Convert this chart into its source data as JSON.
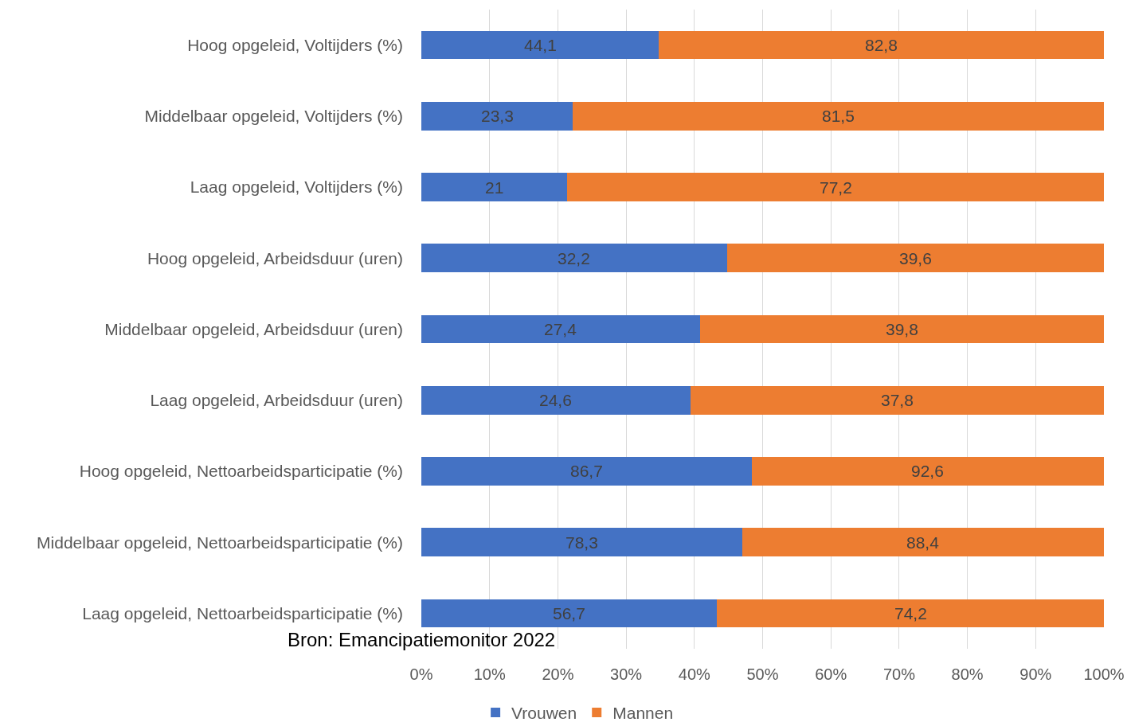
{
  "chart_data": {
    "type": "bar",
    "orientation": "horizontal",
    "stacked": true,
    "categories": [
      "Hoog opgeleid, Voltijders (%)",
      "Middelbaar opgeleid, Voltijders (%)",
      "Laag opgeleid, Voltijders (%)",
      "Hoog opgeleid, Arbeidsduur (uren)",
      "Middelbaar opgeleid, Arbeidsduur (uren)",
      "Laag opgeleid, Arbeidsduur (uren)",
      "Hoog opgeleid, Nettoarbeidsparticipatie (%)",
      "Middelbaar opgeleid, Nettoarbeidsparticipatie (%)",
      "Laag opgeleid, Nettoarbeidsparticipatie (%)"
    ],
    "series": [
      {
        "name": "Vrouwen",
        "color": "#4472c4",
        "values": [
          34.8,
          22.2,
          21.4,
          44.8,
          40.8,
          39.4,
          48.4,
          47.0,
          43.3
        ]
      },
      {
        "name": "Mannen",
        "color": "#ed7d31",
        "values": [
          65.2,
          77.8,
          78.6,
          55.2,
          59.2,
          60.6,
          51.6,
          53.0,
          56.7
        ]
      }
    ],
    "xlim": [
      0,
      100
    ],
    "xticks": [
      {
        "value": 0,
        "label": "0%"
      },
      {
        "value": 10,
        "label": "10%"
      },
      {
        "value": 20,
        "label": "20%"
      },
      {
        "value": 30,
        "label": "30%"
      },
      {
        "value": 40,
        "label": "40%"
      },
      {
        "value": 50,
        "label": "50%"
      },
      {
        "value": 60,
        "label": "60%"
      },
      {
        "value": 70,
        "label": "70%"
      },
      {
        "value": 80,
        "label": "80%"
      },
      {
        "value": 90,
        "label": "90%"
      },
      {
        "value": 100,
        "label": "100%"
      }
    ],
    "grid": "x",
    "legend": "bottom",
    "annotations": [
      "44,1",
      "82,8",
      "23,3",
      "81,5",
      "21",
      "77,2",
      "32,2",
      "39,6",
      "27,4",
      "39,8",
      "24,6",
      "37,8",
      "86,7",
      "92,6",
      "78,3",
      "88,4",
      "56,7",
      "74,2",
      "Bron: Emancipatiemonitor 2022"
    ]
  }
}
